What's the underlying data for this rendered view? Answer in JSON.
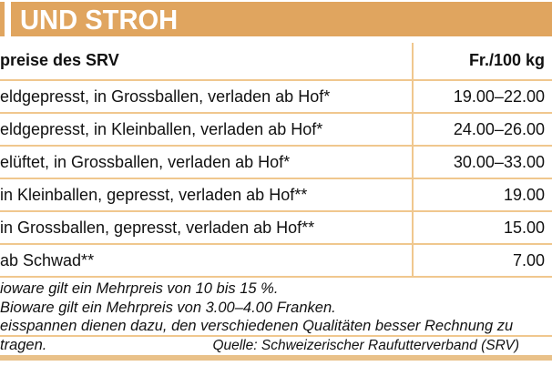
{
  "title": "UND STROH",
  "colors": {
    "bar": "#E0A55F",
    "line": "#F0C78E",
    "bottom_bar": "#E9C189"
  },
  "table": {
    "header": {
      "label": "preise des SRV",
      "unit": "Fr./100 kg"
    },
    "rows": [
      {
        "label": "eldgepresst, in Grossballen, verladen ab Hof*",
        "price": "19.00–22.00"
      },
      {
        "label": "eldgepresst, in Kleinballen, verladen ab Hof*",
        "price": "24.00–26.00"
      },
      {
        "label": "elüftet, in Grossballen, verladen ab Hof*",
        "price": "30.00–33.00"
      },
      {
        "label": "in Kleinballen, gepresst, verladen ab Hof**",
        "price": "19.00"
      },
      {
        "label": "in Grossballen, gepresst, verladen ab Hof**",
        "price": "15.00"
      },
      {
        "label": "ab Schwad**",
        "price": "7.00"
      }
    ]
  },
  "footnotes": [
    "ioware gilt ein Mehrpreis von 10 bis 15 %.",
    "Bioware gilt ein Mehrpreis von 3.00–4.00 Franken.",
    "eisspannen dienen dazu, den verschiedenen Qualitäten besser Rechnung zu tragen."
  ],
  "source": "Quelle: Schweizerischer Raufutterverband (SRV)"
}
